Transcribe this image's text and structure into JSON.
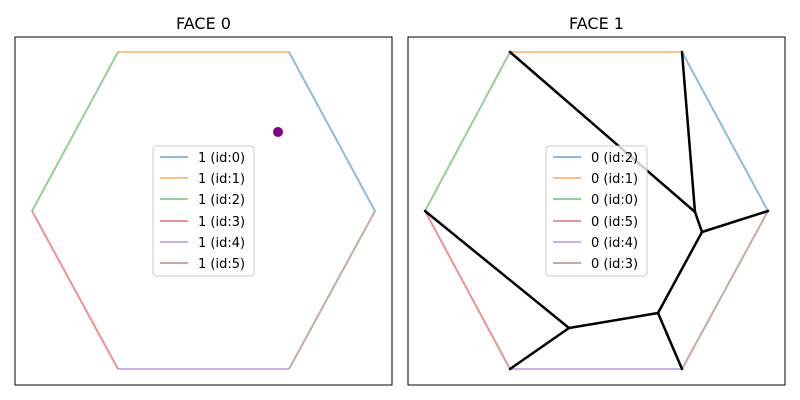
{
  "panels": [
    {
      "title": "FACE 0",
      "hex_edges": [
        {
          "color": "#1f77b4"
        },
        {
          "color": "#ff7f0e"
        },
        {
          "color": "#2ca02c"
        },
        {
          "color": "#d62728"
        },
        {
          "color": "#9467bd"
        },
        {
          "color": "#8c564b"
        }
      ],
      "legend": [
        {
          "label": "1 (id:0)",
          "color": "#1f77b4"
        },
        {
          "label": "1 (id:1)",
          "color": "#ff7f0e"
        },
        {
          "label": "1 (id:2)",
          "color": "#2ca02c"
        },
        {
          "label": "1 (id:3)",
          "color": "#d62728"
        },
        {
          "label": "1 (id:4)",
          "color": "#9467bd"
        },
        {
          "label": "1 (id:5)",
          "color": "#8c564b"
        }
      ],
      "marker_color": "#800080"
    },
    {
      "title": "FACE 1",
      "hex_edges": [
        {
          "color": "#1f77b4"
        },
        {
          "color": "#ff7f0e"
        },
        {
          "color": "#2ca02c"
        },
        {
          "color": "#d62728"
        },
        {
          "color": "#9467bd"
        },
        {
          "color": "#8c564b"
        }
      ],
      "legend": [
        {
          "label": "0 (id:2)",
          "color": "#1f77b4"
        },
        {
          "label": "0 (id:1)",
          "color": "#ff7f0e"
        },
        {
          "label": "0 (id:0)",
          "color": "#2ca02c"
        },
        {
          "label": "0 (id:5)",
          "color": "#d62728"
        },
        {
          "label": "0 (id:4)",
          "color": "#9467bd"
        },
        {
          "label": "0 (id:3)",
          "color": "#8c564b"
        }
      ],
      "internal_color": "#000000"
    }
  ]
}
